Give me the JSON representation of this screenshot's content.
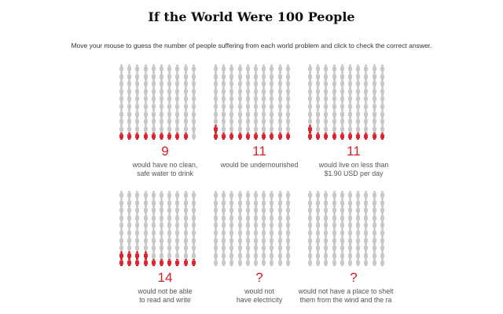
{
  "header": {
    "title": "If the World Were 100 People",
    "instructions": "Move your mouse to guess the number of people suffering from each world problem and click to check the correct answer."
  },
  "colors": {
    "accent": "#e0242d",
    "inactive": "#c9c9c9"
  },
  "panels": [
    {
      "answer": "9",
      "highlighted": 9,
      "caption_line1": "would have no clean,",
      "caption_line2": "safe water to drink"
    },
    {
      "answer": "11",
      "highlighted": 11,
      "caption_line1": "would be undernourished",
      "caption_line2": ""
    },
    {
      "answer": "11",
      "highlighted": 11,
      "caption_line1": "would live on less than",
      "caption_line2": "$1.90 USD per day"
    },
    {
      "answer": "14",
      "highlighted": 14,
      "caption_line1": "would not be able",
      "caption_line2": "to read and write"
    },
    {
      "answer": "?",
      "highlighted": 0,
      "caption_line1": "would not",
      "caption_line2": "have electricity"
    },
    {
      "answer": "?",
      "highlighted": 0,
      "caption_line1": "would not have a place to shelt",
      "caption_line2": "them from the wind and the ra"
    }
  ]
}
